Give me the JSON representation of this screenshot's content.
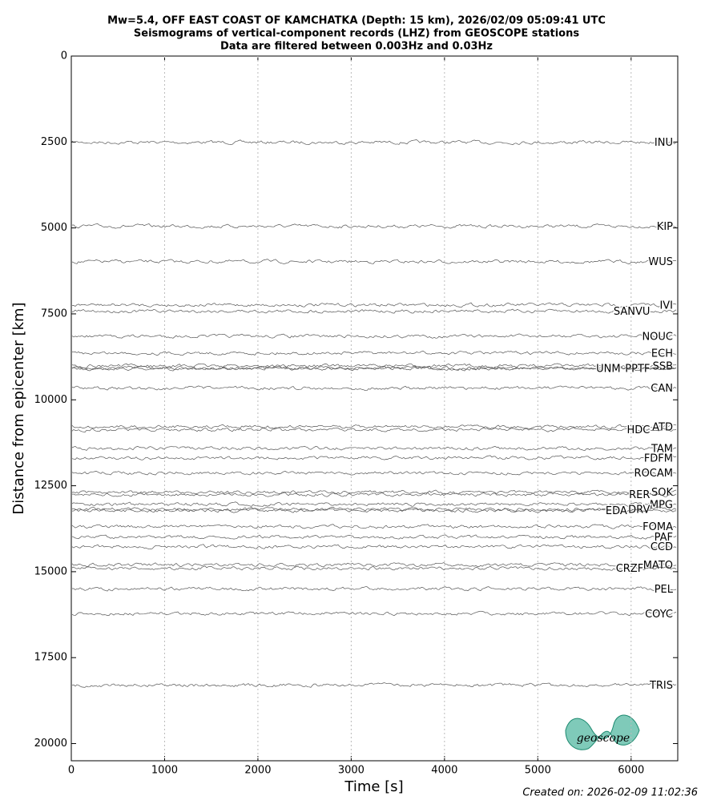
{
  "chart_data": {
    "type": "record-section",
    "title": [
      "Mw=5.4, OFF EAST COAST OF KAMCHATKA (Depth: 15 km), 2026/02/09 05:09:41 UTC",
      "Seismograms of vertical-component records (LHZ) from GEOSCOPE stations",
      "Data are filtered between 0.003Hz and 0.03Hz"
    ],
    "xlabel": "Time [s]",
    "ylabel": "Distance from epicenter [km]",
    "xlim": [
      0,
      6500
    ],
    "xticks": [
      0,
      1000,
      2000,
      3000,
      4000,
      5000,
      6000
    ],
    "ylim": [
      0,
      20500
    ],
    "yticks": [
      0,
      2500,
      5000,
      7500,
      10000,
      12500,
      15000,
      17500,
      20000
    ],
    "invert_y": true,
    "grid": "x",
    "color": "#555555",
    "stations": [
      "INU",
      "KIP",
      "WUS",
      "IVI",
      "SANVU",
      "NOUC",
      "ECH",
      "SSB",
      "PPTF",
      "UNM",
      "CAN",
      "ATD",
      "HDC",
      "TAM",
      "FDFM",
      "ROCAM",
      "SOK",
      "RER",
      "MPG",
      "DRV",
      "EDA",
      "FOMA",
      "PAF",
      "CCD",
      "MATO",
      "CRZF",
      "PEL",
      "COYC",
      "TRIS"
    ],
    "distances": [
      2510,
      4950,
      5980,
      7240,
      7420,
      8150,
      8640,
      9010,
      9080,
      9090,
      9660,
      10780,
      10870,
      11410,
      11690,
      12130,
      12690,
      12760,
      13040,
      13180,
      13220,
      13690,
      13990,
      14270,
      14800,
      14900,
      15500,
      16220,
      18300
    ],
    "footer": "Created on: 2026-02-09 11:02:36",
    "logo_text": "geoscope"
  }
}
